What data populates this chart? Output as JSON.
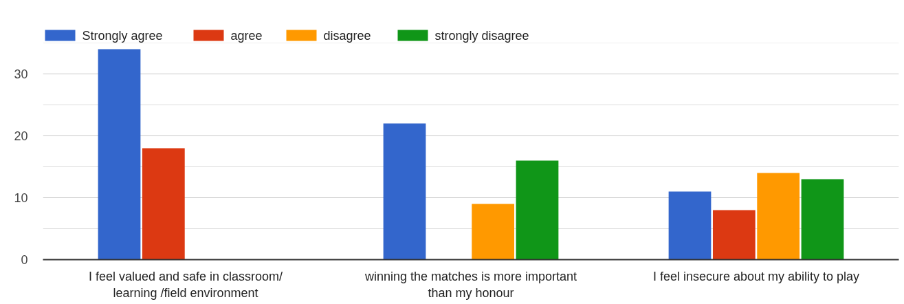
{
  "chart_data": {
    "type": "bar",
    "categories": [
      "I feel valued and safe in classroom/ learning /field environment",
      "winning the matches is more important than my honour",
      "I feel insecure about my ability to play"
    ],
    "series": [
      {
        "name": "Strongly agree",
        "color": "#3366cc",
        "values": [
          34,
          22,
          11
        ]
      },
      {
        "name": "agree",
        "color": "#dc3912",
        "values": [
          18,
          null,
          8
        ]
      },
      {
        "name": "disagree",
        "color": "#ff9900",
        "values": [
          null,
          9,
          14
        ]
      },
      {
        "name": "strongly disagree",
        "color": "#109618",
        "values": [
          null,
          16,
          13
        ]
      }
    ],
    "ylim": [
      0,
      35
    ],
    "yticks": [
      0,
      {
        "value": 5,
        "label": null
      },
      10,
      {
        "value": 15,
        "label": null
      },
      20,
      {
        "value": 25,
        "label": null
      },
      30,
      {
        "value": 35,
        "label": null
      }
    ],
    "grid": "y",
    "legend": "top left"
  }
}
